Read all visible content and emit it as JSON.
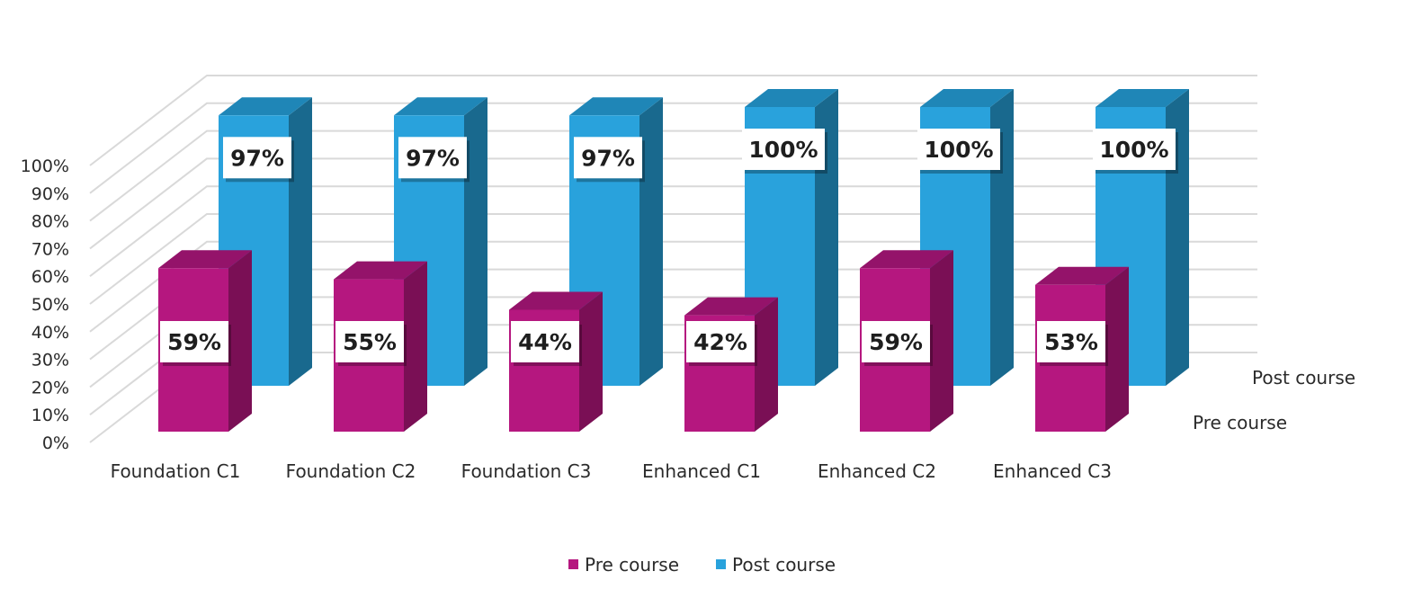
{
  "chart_data": {
    "type": "bar",
    "style": "3d-clustered-column",
    "categories": [
      "Foundation C1",
      "Foundation C2",
      "Foundation C3",
      "Enhanced C1",
      "Enhanced C2",
      "Enhanced C3"
    ],
    "series": [
      {
        "name": "Pre course",
        "values": [
          59,
          55,
          44,
          42,
          59,
          53
        ],
        "labels": [
          "59%",
          "55%",
          "44%",
          "42%",
          "59%",
          "53%"
        ],
        "color": "#b5177f",
        "color_side": "#7a0f55",
        "color_top": "#94136a"
      },
      {
        "name": "Post course",
        "values": [
          97,
          97,
          97,
          100,
          100,
          100
        ],
        "labels": [
          "97%",
          "97%",
          "97%",
          "100%",
          "100%",
          "100%"
        ],
        "color": "#29a2dc",
        "color_side": "#19698e",
        "color_top": "#1f86b7"
      }
    ],
    "y_ticks": [
      "0%",
      "10%",
      "20%",
      "30%",
      "40%",
      "50%",
      "60%",
      "70%",
      "80%",
      "90%",
      "100%"
    ],
    "ylim": [
      0,
      100
    ],
    "grid": true,
    "legend_position": "bottom",
    "depth_axis_labels": [
      "Pre course",
      "Post course"
    ],
    "gridline_color": "#d9d9d9"
  }
}
